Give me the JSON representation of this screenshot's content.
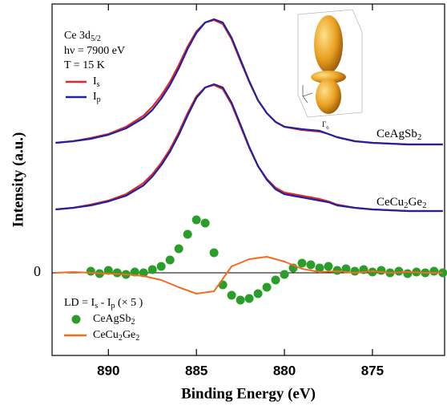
{
  "chart_data": {
    "type": "line",
    "xlabel": "Binding Energy (eV)",
    "ylabel": "Intensity (a.u.)",
    "xlim": [
      893.2,
      870.9
    ],
    "xticks": [
      890,
      885,
      880,
      875
    ],
    "ylim": [
      -10.3,
      33.5
    ],
    "yticks": [
      0
    ],
    "annotations": [
      "Ce 3d5/2",
      "hν = 7900 eV",
      "T = 15 K",
      "Γ6"
    ],
    "polarizations": [
      {
        "name": "Is",
        "color": "#e3262a"
      },
      {
        "name": "Ip",
        "color": "#22239a"
      }
    ],
    "samples": [
      {
        "name": "CeAgSb2",
        "x": [
          893,
          892,
          891,
          890,
          889,
          888,
          887.5,
          887,
          886.5,
          886,
          885.5,
          885,
          884.5,
          884,
          883.5,
          883,
          882.5,
          882,
          881.5,
          881,
          880.5,
          880,
          879,
          878.5,
          878,
          877.5,
          877,
          876,
          875,
          874,
          873,
          872,
          871
        ],
        "values": [
          [
            16.2,
            16.4,
            16.8,
            17.3,
            18.2,
            19.6,
            20.7,
            22.1,
            23.8,
            25.9,
            28.2,
            30.1,
            31.2,
            31.5,
            31.0,
            29.1,
            26.4,
            23.8,
            21.5,
            19.9,
            18.8,
            18.2,
            17.8,
            17.7,
            17.6,
            17.3,
            16.9,
            16.4,
            16.2,
            16.1,
            16.0,
            16.0,
            16.0
          ],
          [
            16.2,
            16.4,
            16.7,
            17.2,
            18.0,
            19.3,
            20.3,
            21.7,
            23.4,
            25.5,
            27.9,
            29.9,
            31.2,
            31.6,
            31.2,
            29.3,
            26.6,
            23.9,
            21.5,
            19.9,
            18.8,
            18.2,
            17.9,
            17.8,
            17.7,
            17.3,
            16.9,
            16.4,
            16.2,
            16.1,
            16.0,
            16.0,
            16.0
          ]
        ]
      },
      {
        "name": "CeCu2Ge2",
        "x": [
          893,
          892,
          891,
          890,
          889,
          888,
          887.5,
          887,
          886.5,
          886,
          885.5,
          885,
          884.5,
          884,
          883.5,
          883,
          882.5,
          882,
          881.5,
          881,
          880.5,
          880,
          879,
          878.5,
          878,
          877.5,
          877,
          876,
          875,
          874,
          873,
          872,
          871
        ],
        "values": [
          [
            7.9,
            8.1,
            8.5,
            9.0,
            9.8,
            11.2,
            12.3,
            13.7,
            15.4,
            17.5,
            19.9,
            22.0,
            23.1,
            23.4,
            22.9,
            21.0,
            18.3,
            15.6,
            13.3,
            11.7,
            10.6,
            10.0,
            9.6,
            9.4,
            9.2,
            8.9,
            8.5,
            8.1,
            7.9,
            7.8,
            7.7,
            7.7,
            7.7
          ],
          [
            7.9,
            8.1,
            8.4,
            8.9,
            9.6,
            10.9,
            12.0,
            13.4,
            15.1,
            17.2,
            19.6,
            21.8,
            23.1,
            23.5,
            23.1,
            21.2,
            18.5,
            15.7,
            13.3,
            11.6,
            10.4,
            9.8,
            9.4,
            9.2,
            9.0,
            8.8,
            8.4,
            8.1,
            7.9,
            7.8,
            7.7,
            7.7,
            7.7
          ]
        ]
      }
    ],
    "ld": {
      "label": "LD = Is - Ip (× 5 )",
      "series": [
        {
          "name": "CeAgSb2",
          "type": "scatter",
          "color": "#2a9d2a",
          "x": [
            891,
            890.5,
            890,
            889.5,
            889,
            888.5,
            888,
            887.5,
            887,
            886.5,
            886,
            885.5,
            885,
            884.5,
            884,
            883.5,
            883,
            882.5,
            882,
            881.5,
            881,
            880.5,
            880,
            879.5,
            879,
            878.5,
            878,
            877.5,
            877,
            876.5,
            876,
            875.5,
            875,
            874.5,
            874,
            873.5,
            873,
            872.5,
            872,
            871.5,
            871
          ],
          "values": [
            0.2,
            -0.1,
            0.3,
            0.0,
            -0.2,
            0.1,
            0.0,
            0.4,
            0.8,
            1.6,
            3.0,
            4.8,
            6.6,
            6.2,
            2.5,
            -1.5,
            -2.8,
            -3.4,
            -3.2,
            -2.6,
            -1.8,
            -0.9,
            -0.2,
            0.6,
            1.2,
            1.0,
            0.6,
            0.8,
            0.3,
            0.5,
            0.2,
            0.4,
            0.1,
            0.3,
            0.0,
            0.2,
            -0.1,
            0.1,
            0.0,
            0.2,
            0.0
          ]
        },
        {
          "name": "CeCu2Ge2",
          "type": "line",
          "color": "#f26b21",
          "x": [
            893,
            892,
            891,
            890,
            889,
            888,
            887,
            886,
            885,
            884,
            883,
            882,
            881,
            880,
            879,
            878,
            877,
            876,
            875,
            874,
            873,
            872,
            871
          ],
          "values": [
            0,
            0.1,
            0,
            -0.1,
            -0.2,
            -0.4,
            -0.9,
            -1.8,
            -2.6,
            -2.3,
            0.8,
            1.7,
            2.0,
            1.4,
            0.5,
            0.1,
            0.2,
            0,
            0.2,
            0,
            0.1,
            0,
            0
          ]
        }
      ]
    }
  }
}
